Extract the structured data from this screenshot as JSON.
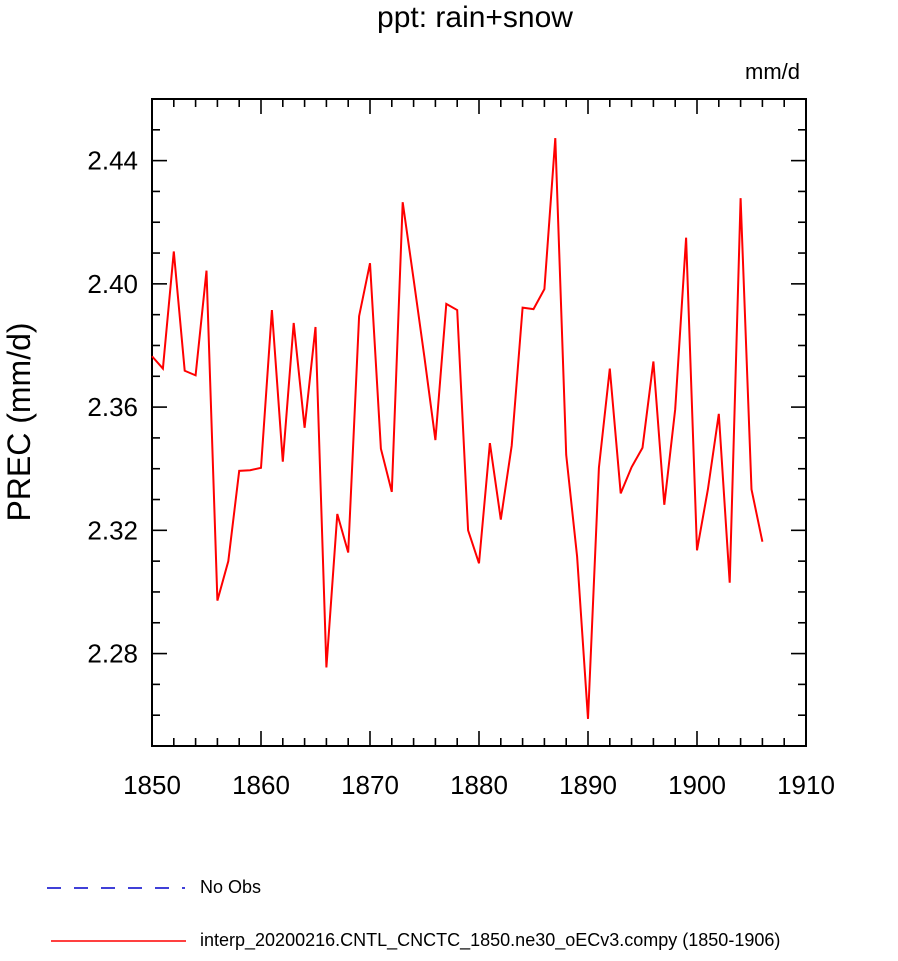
{
  "chart_data": {
    "type": "line",
    "title": "ppt: rain+snow",
    "units_label": "mm/d",
    "xlabel": "",
    "ylabel": "PREC  (mm/d)",
    "xlim": [
      1850,
      1910
    ],
    "ylim": [
      2.25,
      2.46
    ],
    "x_ticks": [
      "1850",
      "1860",
      "1870",
      "1880",
      "1890",
      "1900",
      "1910"
    ],
    "y_ticks": [
      "2.28",
      "2.32",
      "2.36",
      "2.40",
      "2.44"
    ],
    "grid": false,
    "legend_position": "bottom",
    "series": [
      {
        "name": "No Obs",
        "color": "#0000cc",
        "style": "dashed",
        "x": [],
        "y": []
      },
      {
        "name": "interp_20200216.CNTL_CNCTC_1850.ne30_oECv3.compy (1850-1906)",
        "color": "#ff0000",
        "style": "solid",
        "x": [
          1850,
          1851,
          1852,
          1853,
          1854,
          1855,
          1856,
          1857,
          1858,
          1859,
          1860,
          1861,
          1862,
          1863,
          1864,
          1865,
          1866,
          1867,
          1868,
          1869,
          1870,
          1871,
          1872,
          1873,
          1874,
          1875,
          1876,
          1877,
          1878,
          1879,
          1880,
          1881,
          1882,
          1883,
          1884,
          1885,
          1886,
          1887,
          1888,
          1889,
          1890,
          1891,
          1892,
          1893,
          1894,
          1895,
          1896,
          1897,
          1898,
          1899,
          1900,
          1901,
          1902,
          1903,
          1904,
          1905,
          1906
        ],
        "y": [
          2.3765,
          2.3725,
          2.4105,
          2.3718,
          2.3703,
          2.4043,
          2.2972,
          2.31,
          2.3393,
          2.3395,
          2.3403,
          2.3915,
          2.3423,
          2.3873,
          2.3533,
          2.386,
          2.2755,
          2.3253,
          2.3128,
          2.3895,
          2.4067,
          2.3465,
          2.3325,
          2.4265,
          2.4015,
          2.376,
          2.3493,
          2.3935,
          2.3915,
          2.32,
          2.3093,
          2.3483,
          2.3235,
          2.3475,
          2.3923,
          2.3918,
          2.3983,
          2.4473,
          2.3445,
          2.3115,
          2.2588,
          2.3403,
          2.3725,
          2.332,
          2.3405,
          2.3468,
          2.3748,
          2.3283,
          2.3593,
          2.415,
          2.3135,
          2.3333,
          2.3578,
          2.303,
          2.4278,
          2.3333,
          2.3163
        ]
      }
    ]
  }
}
